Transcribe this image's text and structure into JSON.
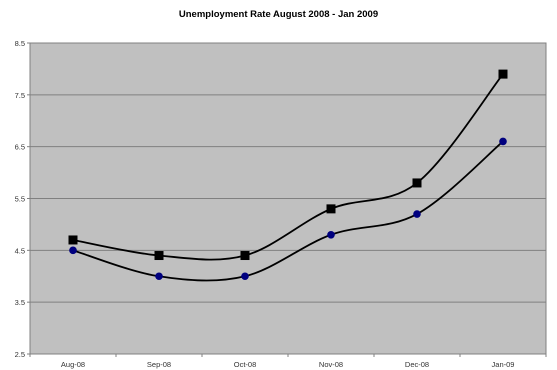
{
  "chart_data": {
    "type": "line",
    "title": "Unemployment Rate August 2008 - Jan 2009",
    "xlabel": "",
    "ylabel": "",
    "categories": [
      "Aug-08",
      "Sep-08",
      "Oct-08",
      "Nov-08",
      "Dec-08",
      "Jan-09"
    ],
    "yticks": [
      "2.5",
      "3.5",
      "4.5",
      "5.5",
      "6.5",
      "7.5",
      "8.5"
    ],
    "ylim": [
      2.5,
      8.5
    ],
    "grid": true,
    "legend": "none",
    "series": [
      {
        "marker": "square",
        "color": "#000000",
        "values": [
          4.7,
          4.4,
          4.4,
          5.3,
          5.8,
          7.9
        ]
      },
      {
        "marker": "circle",
        "color": "#00007f",
        "values": [
          4.5,
          4.0,
          4.0,
          4.8,
          5.2,
          6.6
        ]
      }
    ],
    "colors": {
      "plot_background": "#c0c0c0",
      "gridline": "#808080",
      "line": "#000000"
    }
  }
}
